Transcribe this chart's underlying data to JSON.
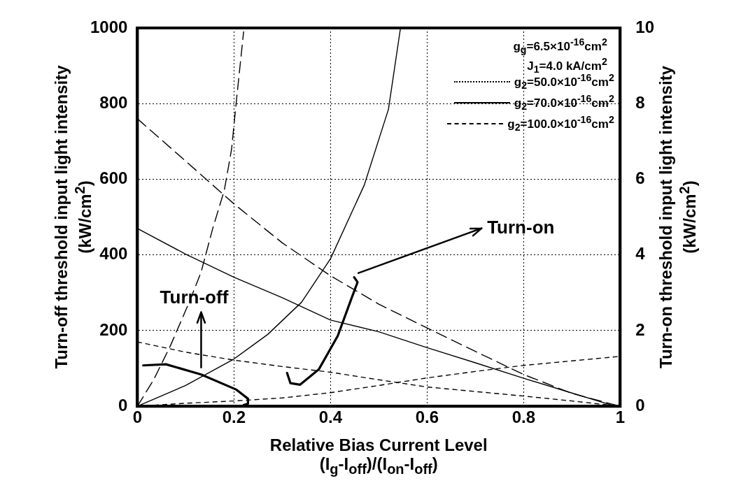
{
  "chart_data": {
    "type": "line",
    "xlabel": "Relative Bias Current Level\n(I$_{g}$-I$_{off}$)/(I$_{on}$-I$_{off}$)",
    "ylabel": "Turn-off threshold input light intensity\n(kW/cm$^{2}$)",
    "y2label": "Turn-on threshold input light intensity\n(kW/cm$^{2}$)",
    "xlim": [
      0,
      1
    ],
    "xticks": [
      0,
      0.2,
      0.4,
      0.6,
      0.8,
      1
    ],
    "ylim": [
      0,
      1000
    ],
    "yticks": [
      0,
      200,
      400,
      600,
      800,
      1000
    ],
    "y2lim": [
      0,
      10
    ],
    "y2ticks": [
      0,
      2,
      4,
      6,
      8,
      10
    ],
    "grid": true,
    "legend": "top right",
    "marker": "none",
    "annotations": [
      "g$_{g}$=6.5×10$^{-16}$cm$^{2}$",
      "J$_{1}$=4.0 kA/cm$^{2}$",
      "Turn-off",
      "Turn-on"
    ],
    "series": [
      {
        "name": "g$_{2}$=50.0×10$^{-16}$cm$^{2}$",
        "color": "#000000",
        "line_style": "dotted",
        "x": [
          0,
          0.1,
          0.2,
          0.3,
          0.4,
          0.5,
          0.6,
          0.7,
          0.8,
          0.9,
          1.0
        ],
        "values": [
          170,
          143,
          122,
          105,
          90,
          70,
          51,
          39,
          27,
          14,
          0
        ]
      },
      {
        "name": "g$_{2}$=70.0×10$^{-16}$cm$^{2}$",
        "color": "#000000",
        "line_style": "solid",
        "x": [
          0,
          0.1,
          0.2,
          0.3,
          0.4,
          0.5,
          0.6,
          0.7,
          0.8,
          0.9,
          0.99
        ],
        "values": [
          470,
          402,
          341,
          287,
          228,
          197,
          155,
          115,
          74,
          35,
          0
        ]
      },
      {
        "name": "g$_{2}$=100.0×10$^{-16}$cm$^{2}$",
        "color": "#000000",
        "line_style": "dashed",
        "x": [
          0,
          0.1,
          0.2,
          0.3,
          0.4,
          0.5,
          0.6,
          0.7,
          0.8,
          0.9,
          1.0
        ],
        "values": [
          760,
          648,
          535,
          432,
          345,
          270,
          207,
          145,
          84,
          34,
          0
        ]
      },
      {
        "color": "#000000",
        "line_style": "dotted",
        "axis": "y2",
        "x": [
          0,
          0.1,
          0.2,
          0.3,
          0.4,
          0.5,
          0.6,
          0.7,
          0.8,
          0.9,
          1.0
        ],
        "values": [
          0,
          0.08,
          0.14,
          0.22,
          0.36,
          0.55,
          0.75,
          0.92,
          1.08,
          1.2,
          1.32
        ]
      },
      {
        "color": "#000000",
        "line_style": "solid",
        "axis": "y2",
        "x": [
          0,
          0.1,
          0.2,
          0.27,
          0.34,
          0.4,
          0.47,
          0.52,
          0.545
        ],
        "values": [
          0,
          0.55,
          1.25,
          1.9,
          2.75,
          3.9,
          5.85,
          7.85,
          10
        ]
      },
      {
        "color": "#000000",
        "line_style": "dashed",
        "axis": "y2",
        "x": [
          0,
          0.034,
          0.068,
          0.107,
          0.132,
          0.156,
          0.18,
          0.195,
          0.205,
          0.215,
          0.22
        ],
        "values": [
          0,
          0.71,
          1.59,
          2.74,
          3.55,
          4.7,
          5.71,
          6.79,
          8.07,
          9.29,
          9.9
        ]
      },
      {
        "color": "#000000",
        "line_style": "solid",
        "x": [
          0.012,
          0.059,
          0.132,
          0.205,
          0.229,
          0.229,
          0.22
        ],
        "values": [
          108,
          111,
          84,
          44,
          20,
          7,
          3
        ]
      },
      {
        "color": "#000000",
        "line_style": "solid",
        "axis": "y2",
        "x": [
          0.31,
          0.317,
          0.337,
          0.376,
          0.415,
          0.444,
          0.456,
          0.449
        ],
        "values": [
          0.88,
          0.61,
          0.57,
          0.98,
          1.86,
          2.87,
          3.28,
          3.41
        ]
      }
    ]
  }
}
